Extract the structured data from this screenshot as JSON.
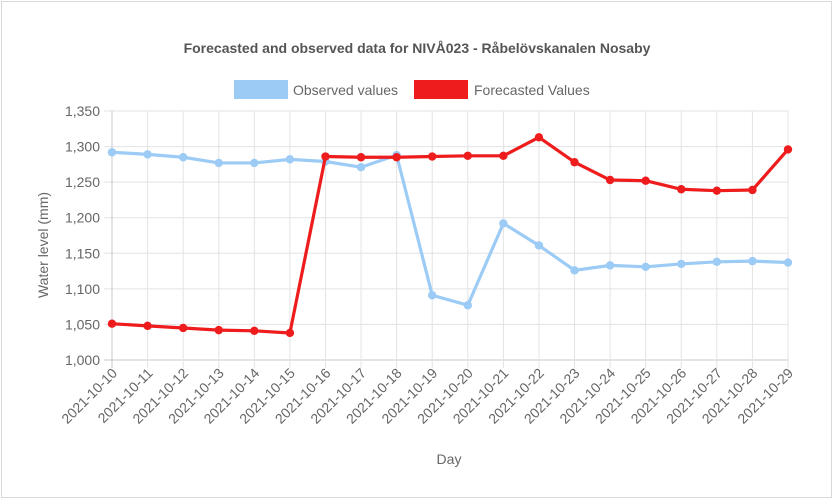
{
  "chart_data": {
    "type": "line",
    "title": "Forecasted and observed data for NIVÅ023 - Råbelövskanalen Nosaby",
    "xlabel": "Day",
    "ylabel": "Water level (mm)",
    "ylim": [
      1000,
      1350
    ],
    "yticks": [
      "1,000",
      "1,050",
      "1,100",
      "1,150",
      "1,200",
      "1,250",
      "1,300",
      "1,350"
    ],
    "grid": true,
    "legend_position": "top",
    "categories": [
      "2021-10-10",
      "2021-10-11",
      "2021-10-12",
      "2021-10-13",
      "2021-10-14",
      "2021-10-15",
      "2021-10-16",
      "2021-10-17",
      "2021-10-18",
      "2021-10-19",
      "2021-10-20",
      "2021-10-21",
      "2021-10-22",
      "2021-10-23",
      "2021-10-24",
      "2021-10-25",
      "2021-10-26",
      "2021-10-27",
      "2021-10-28",
      "2021-10-29"
    ],
    "series": [
      {
        "name": "Observed values",
        "color": "#9ccbf5",
        "values": [
          1292,
          1289,
          1285,
          1277,
          1277,
          1282,
          1279,
          1271,
          1288,
          1091,
          1077,
          1192,
          1161,
          1126,
          1133,
          1131,
          1135,
          1138,
          1139,
          1137
        ]
      },
      {
        "name": "Forecasted Values",
        "color": "#ee1c1c",
        "values": [
          1051,
          1048,
          1045,
          1042,
          1041,
          1038,
          1286,
          1285,
          1285,
          1286,
          1287,
          1287,
          1313,
          1278,
          1253,
          1252,
          1240,
          1238,
          1239,
          1296
        ]
      }
    ]
  }
}
